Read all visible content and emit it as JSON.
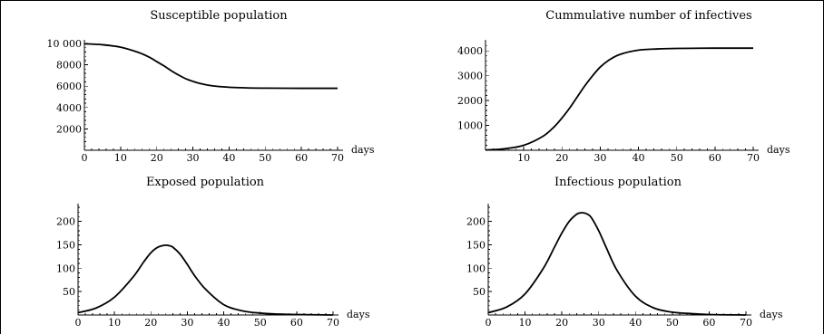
{
  "chart_data": [
    {
      "type": "line",
      "title": "Susceptible population",
      "xlabel": "days",
      "ylabel": "",
      "xlim": [
        0,
        70
      ],
      "ylim": [
        0,
        10000
      ],
      "xticks": [
        0,
        10,
        20,
        30,
        40,
        50,
        60,
        70
      ],
      "yticks": [
        2000,
        4000,
        6000,
        8000,
        10000
      ],
      "ytick_labels": [
        "2000",
        "4000",
        "6000",
        "8000",
        "10 000"
      ],
      "series": [
        {
          "x": [
            0,
            5,
            10,
            15,
            18,
            20,
            22,
            24,
            26,
            28,
            30,
            32,
            35,
            40,
            45,
            50,
            60,
            70
          ],
          "values": [
            9970,
            9880,
            9650,
            9150,
            8700,
            8300,
            7900,
            7450,
            7050,
            6700,
            6450,
            6250,
            6050,
            5900,
            5840,
            5815,
            5800,
            5800
          ]
        }
      ]
    },
    {
      "type": "line",
      "title": "Cummulative number of infectives",
      "xlabel": "days",
      "ylabel": "",
      "xlim": [
        0,
        70
      ],
      "ylim": [
        0,
        4300
      ],
      "xticks": [
        10,
        20,
        30,
        40,
        50,
        60,
        70
      ],
      "yticks": [
        1000,
        2000,
        3000,
        4000
      ],
      "ytick_labels": [
        "1000",
        "2000",
        "3000",
        "4000"
      ],
      "series": [
        {
          "x": [
            0,
            5,
            10,
            15,
            18,
            20,
            22,
            24,
            26,
            28,
            30,
            32,
            35,
            40,
            45,
            50,
            60,
            70
          ],
          "values": [
            10,
            60,
            200,
            560,
            950,
            1300,
            1700,
            2150,
            2600,
            3000,
            3350,
            3600,
            3850,
            4030,
            4080,
            4100,
            4110,
            4110
          ]
        }
      ]
    },
    {
      "type": "line",
      "title": "Exposed population",
      "xlabel": "days",
      "ylabel": "",
      "xlim": [
        0,
        70
      ],
      "ylim": [
        0,
        230
      ],
      "xticks": [
        0,
        10,
        20,
        30,
        40,
        50,
        60,
        70
      ],
      "yticks": [
        50,
        100,
        150,
        200
      ],
      "ytick_labels": [
        "50",
        "100",
        "150",
        "200"
      ],
      "series": [
        {
          "x": [
            0,
            5,
            10,
            15,
            18,
            20,
            22,
            24,
            25,
            26,
            28,
            30,
            32,
            35,
            40,
            45,
            50,
            55,
            60,
            70
          ],
          "values": [
            5,
            15,
            38,
            80,
            113,
            133,
            145,
            149,
            148,
            145,
            130,
            108,
            84,
            55,
            22,
            9,
            4,
            2,
            1,
            0
          ]
        }
      ]
    },
    {
      "type": "line",
      "title": "Infectious population",
      "xlabel": "days",
      "ylabel": "",
      "xlim": [
        0,
        70
      ],
      "ylim": [
        0,
        230
      ],
      "xticks": [
        0,
        10,
        20,
        30,
        40,
        50,
        60,
        70
      ],
      "yticks": [
        50,
        100,
        150,
        200
      ],
      "ytick_labels": [
        "50",
        "100",
        "150",
        "200"
      ],
      "series": [
        {
          "x": [
            0,
            5,
            10,
            15,
            18,
            20,
            22,
            24,
            25,
            26,
            27,
            28,
            30,
            32,
            35,
            40,
            45,
            50,
            55,
            60,
            70
          ],
          "values": [
            5,
            17,
            45,
            100,
            145,
            175,
            200,
            215,
            218,
            218,
            215,
            208,
            180,
            145,
            95,
            40,
            15,
            6,
            3,
            1,
            0
          ]
        }
      ]
    }
  ]
}
